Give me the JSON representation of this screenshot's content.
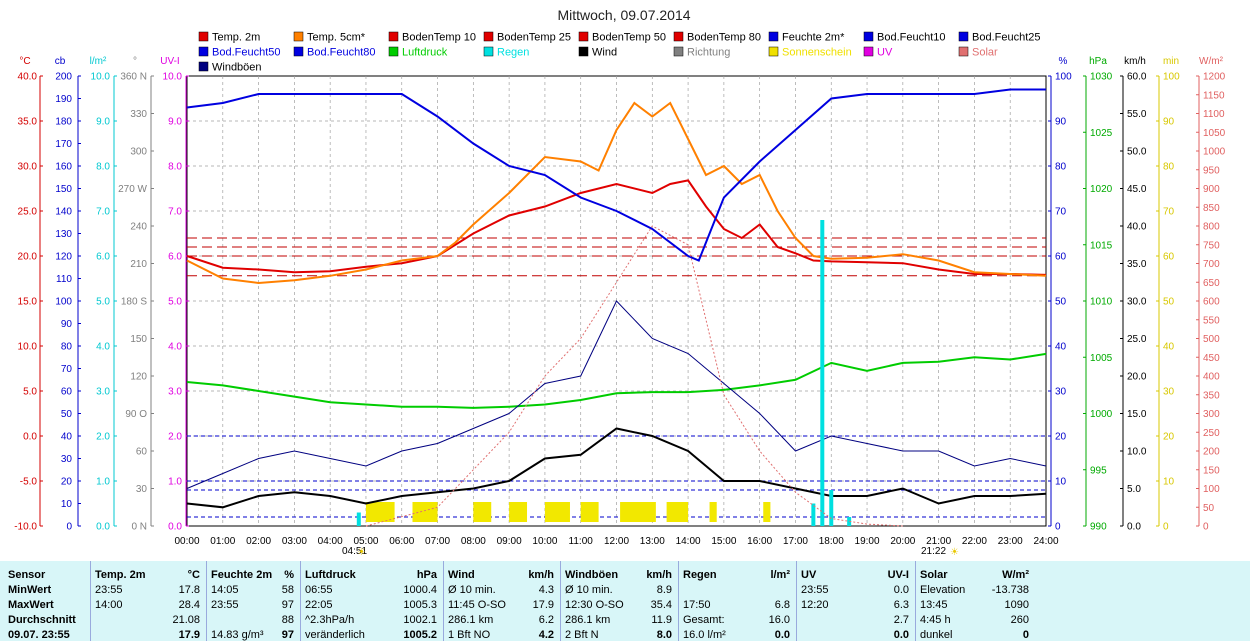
{
  "chart_data": {
    "type": "line",
    "title": "Mittwoch, 09.07.2014",
    "x_range": [
      "00:00",
      "24:00"
    ],
    "x_ticks": [
      "00:00",
      "01:00",
      "02:00",
      "03:00",
      "04:00",
      "05:00",
      "06:00",
      "07:00",
      "08:00",
      "09:00",
      "10:00",
      "11:00",
      "12:00",
      "13:00",
      "14:00",
      "15:00",
      "16:00",
      "17:00",
      "18:00",
      "19:00",
      "20:00",
      "21:00",
      "22:00",
      "23:00",
      "24:00"
    ],
    "sunrise": "04:51",
    "sunset": "21:22",
    "axes": [
      {
        "unit": "°C",
        "color": "#d40000",
        "ticks": [
          "40.0",
          "35.0",
          "30.0",
          "25.0",
          "20.0",
          "15.0",
          "10.0",
          "5.0",
          "0.0",
          "-5.0",
          "-10.0"
        ]
      },
      {
        "unit": "cb",
        "color": "#0000cc",
        "ticks": [
          "200",
          "190",
          "180",
          "170",
          "160",
          "150",
          "140",
          "130",
          "120",
          "110",
          "100",
          "90",
          "80",
          "70",
          "60",
          "50",
          "40",
          "30",
          "20",
          "10",
          "0"
        ]
      },
      {
        "unit": "l/m²",
        "color": "#00c8d0",
        "ticks": [
          "10.0",
          "9.0",
          "8.0",
          "7.0",
          "6.0",
          "5.0",
          "4.0",
          "3.0",
          "2.0",
          "1.0",
          "0.0"
        ]
      },
      {
        "unit": "°",
        "color": "#808080",
        "ticks": [
          "360 N",
          "330",
          "300",
          "270 W",
          "240",
          "210",
          "180 S",
          "150",
          "120",
          "90 O",
          "60",
          "30",
          "0 N"
        ]
      },
      {
        "unit": "UV-I",
        "color": "#e000e0",
        "ticks": [
          "10.0",
          "9.0",
          "8.0",
          "7.0",
          "6.0",
          "5.0",
          "4.0",
          "3.0",
          "2.0",
          "1.0",
          "0.0"
        ]
      },
      {
        "unit": "%",
        "color": "#0000cc",
        "ticks": [
          "100",
          "90",
          "80",
          "70",
          "60",
          "50",
          "40",
          "30",
          "20",
          "10",
          "0"
        ]
      },
      {
        "unit": "hPa",
        "color": "#00aa00",
        "ticks": [
          "1030",
          "1025",
          "1020",
          "1015",
          "1010",
          "1005",
          "1000",
          "995",
          "990"
        ]
      },
      {
        "unit": "km/h",
        "color": "#000000",
        "ticks": [
          "60.0",
          "55.0",
          "50.0",
          "45.0",
          "40.0",
          "35.0",
          "30.0",
          "25.0",
          "20.0",
          "15.0",
          "10.0",
          "5.0",
          "0.0"
        ]
      },
      {
        "unit": "min",
        "color": "#d8c800",
        "ticks": [
          "100",
          "90",
          "80",
          "70",
          "60",
          "50",
          "40",
          "30",
          "20",
          "10",
          "0"
        ]
      },
      {
        "unit": "W/m²",
        "color": "#e06060",
        "ticks": [
          "1200",
          "1150",
          "1100",
          "1050",
          "1000",
          "950",
          "900",
          "850",
          "800",
          "750",
          "700",
          "650",
          "600",
          "550",
          "500",
          "450",
          "400",
          "350",
          "300",
          "250",
          "200",
          "150",
          "100",
          "50",
          "0"
        ]
      }
    ],
    "legend": [
      {
        "name": "Temp. 2m",
        "color": "#e00000"
      },
      {
        "name": "Temp. 5cm*",
        "color": "#ff8000"
      },
      {
        "name": "BodenTemp 10",
        "color": "#e00000"
      },
      {
        "name": "BodenTemp 25",
        "color": "#e00000"
      },
      {
        "name": "BodenTemp 50",
        "color": "#e00000"
      },
      {
        "name": "BodenTemp 80",
        "color": "#e00000"
      },
      {
        "name": "Feuchte 2m*",
        "color": "#0000e0"
      },
      {
        "name": "Bod.Feucht10",
        "color": "#0000e0"
      },
      {
        "name": "Bod.Feucht25",
        "color": "#0000e0"
      },
      {
        "name": "Bod.Feucht50",
        "color": "#0000e0"
      },
      {
        "name": "Bod.Feucht80",
        "color": "#0000e0"
      },
      {
        "name": "Luftdruck",
        "color": "#00cc00"
      },
      {
        "name": "Regen",
        "color": "#00e0e0"
      },
      {
        "name": "Wind",
        "color": "#000000"
      },
      {
        "name": "Richtung",
        "color": "#808080"
      },
      {
        "name": "Sonnenschein",
        "color": "#f0e000"
      },
      {
        "name": "UV",
        "color": "#e000e0"
      },
      {
        "name": "Solar",
        "color": "#e07070"
      },
      {
        "name": "Windböen",
        "color": "#000080"
      }
    ],
    "series": [
      {
        "name": "Temp. 2m",
        "axis": "°C",
        "color": "#e00000",
        "x": [
          0,
          1,
          2,
          3,
          4,
          5,
          6,
          7,
          8,
          9,
          10,
          11,
          12,
          13,
          13.5,
          14,
          14.5,
          15,
          15.5,
          16,
          16.5,
          17,
          17.5,
          18,
          19,
          20,
          21,
          22,
          23,
          24
        ],
        "values": [
          20.0,
          18.7,
          18.5,
          18.2,
          18.3,
          18.8,
          19.2,
          20.0,
          22.5,
          24.5,
          25.5,
          27.0,
          28.0,
          27.0,
          28.0,
          28.4,
          25.5,
          23.0,
          22.0,
          23.5,
          21.0,
          20.3,
          19.5,
          19.4,
          19.3,
          19.2,
          18.5,
          18.0,
          18.0,
          17.9
        ]
      },
      {
        "name": "Temp. 5cm*",
        "axis": "°C",
        "color": "#ff8000",
        "x": [
          0,
          1,
          2,
          3,
          4,
          5,
          6,
          7,
          7.5,
          8,
          9,
          10,
          11,
          11.5,
          12,
          12.5,
          13,
          13.5,
          14,
          14.5,
          15,
          15.5,
          16,
          16.5,
          17,
          17.5,
          18,
          19,
          20,
          21,
          22,
          23,
          24
        ],
        "values": [
          19.5,
          17.5,
          17.0,
          17.3,
          17.8,
          18.5,
          19.5,
          20.0,
          21.5,
          23.5,
          27.0,
          31.0,
          30.5,
          29.5,
          34.0,
          37.0,
          35.5,
          37.0,
          33.0,
          29.0,
          30.0,
          28.0,
          29.0,
          25.0,
          22.0,
          20.0,
          19.7,
          19.8,
          20.2,
          19.5,
          18.2,
          18.0,
          17.8
        ]
      },
      {
        "name": "Feuchte 2m*",
        "axis": "%",
        "color": "#0000e0",
        "x": [
          0,
          1,
          2,
          3,
          4,
          5,
          6,
          7,
          8,
          9,
          10,
          11,
          12,
          13,
          14,
          14.3,
          15,
          16,
          17,
          18,
          19,
          20,
          21,
          22,
          23,
          24
        ],
        "values": [
          93,
          94,
          96,
          96,
          96,
          96,
          96,
          91,
          85,
          80,
          78,
          73,
          70,
          66,
          60,
          59,
          73,
          81,
          88,
          95,
          96,
          96,
          96,
          96,
          97,
          97
        ]
      },
      {
        "name": "Luftdruck",
        "axis": "hPa",
        "color": "#00cc00",
        "x": [
          0,
          1,
          2,
          3,
          4,
          5,
          6,
          7,
          8,
          9,
          10,
          11,
          12,
          13,
          14,
          15,
          16,
          17,
          18,
          19,
          20,
          21,
          22,
          23,
          24
        ],
        "values": [
          1002.8,
          1002.5,
          1002.0,
          1001.5,
          1001.0,
          1000.8,
          1000.6,
          1000.6,
          1000.5,
          1000.6,
          1000.8,
          1001.2,
          1001.8,
          1001.9,
          1001.9,
          1002.1,
          1002.5,
          1003.0,
          1004.5,
          1003.8,
          1004.5,
          1004.6,
          1005.0,
          1004.8,
          1005.3
        ]
      },
      {
        "name": "Wind",
        "axis": "km/h",
        "color": "#000000",
        "x": [
          0,
          1,
          2,
          3,
          4,
          5,
          6,
          7,
          8,
          9,
          10,
          11,
          12,
          13,
          14,
          15,
          16,
          17,
          18,
          19,
          20,
          21,
          22,
          23,
          24
        ],
        "values": [
          3,
          2.5,
          4,
          4.5,
          4,
          3,
          4,
          4.5,
          5,
          6,
          9,
          9.5,
          13,
          12,
          10,
          6,
          6,
          5,
          4,
          4,
          5,
          3,
          4,
          4,
          4.3
        ]
      },
      {
        "name": "Windböen",
        "axis": "km/h",
        "color": "#000080",
        "x": [
          0,
          1,
          2,
          3,
          4,
          5,
          6,
          7,
          8,
          9,
          10,
          11,
          12,
          13,
          14,
          15,
          16,
          17,
          18,
          19,
          20,
          21,
          22,
          23,
          24
        ],
        "values": [
          5,
          7,
          9,
          10,
          9,
          8,
          10,
          11,
          13,
          15,
          19,
          20,
          30,
          25,
          23,
          19,
          15,
          10,
          12,
          11,
          10,
          10,
          8,
          9,
          8
        ]
      },
      {
        "name": "Regen",
        "axis": "l/m²",
        "color": "#00e0e0",
        "x": [
          4.8,
          17.5,
          17.75,
          18.0,
          18.5
        ],
        "values": [
          0.3,
          0.5,
          6.8,
          0.8,
          0.2
        ]
      },
      {
        "name": "Solar",
        "axis": "W/m²",
        "color": "#e07070",
        "x": [
          5,
          7,
          8,
          9,
          10,
          11,
          12,
          13,
          14,
          15,
          16,
          17,
          18,
          19,
          20
        ],
        "values": [
          0,
          50,
          150,
          250,
          400,
          500,
          650,
          800,
          750,
          350,
          200,
          90,
          20,
          5,
          0
        ]
      }
    ],
    "sun_intervals": [
      [
        5.0,
        5.8
      ],
      [
        6.3,
        7.0
      ],
      [
        8.0,
        8.5
      ],
      [
        9.0,
        9.5
      ],
      [
        10.0,
        10.7
      ],
      [
        11.0,
        11.5
      ],
      [
        12.1,
        13.1
      ],
      [
        13.4,
        14.0
      ],
      [
        14.6,
        14.8
      ],
      [
        16.1,
        16.3
      ]
    ],
    "soil_temps": [
      {
        "name": "BodenTemp 10",
        "value": 20.0
      },
      {
        "name": "BodenTemp 25",
        "value": 21.0
      },
      {
        "name": "BodenTemp 50",
        "value": 22.0
      },
      {
        "name": "BodenTemp 80",
        "value": 17.8
      }
    ]
  },
  "table": {
    "row_labels": [
      "Sensor",
      "MinWert",
      "MaxWert",
      "Durchschnitt",
      "09.07. 23:55"
    ],
    "columns": [
      {
        "header": "Temp. 2m",
        "unit": "°C",
        "rows": [
          [
            "23:55",
            "17.8"
          ],
          [
            "14:00",
            "28.4"
          ],
          [
            "",
            "21.08"
          ],
          [
            "",
            "17.9"
          ]
        ]
      },
      {
        "header": "Feuchte 2m",
        "unit": "%",
        "rows": [
          [
            "14:05",
            "58"
          ],
          [
            "23:55",
            "97"
          ],
          [
            "",
            "88"
          ],
          [
            "14.83 g/m³",
            "97"
          ]
        ]
      },
      {
        "header": "Luftdruck",
        "unit": "hPa",
        "rows": [
          [
            "06:55",
            "1000.4"
          ],
          [
            "22:05",
            "1005.3"
          ],
          [
            "^2.3hPa/h",
            "1002.1"
          ],
          [
            "veränderlich",
            "1005.2"
          ]
        ]
      },
      {
        "header": "Wind",
        "unit": "km/h",
        "rows": [
          [
            "Ø 10 min.",
            "4.3"
          ],
          [
            "11:45   O-SO",
            "17.9"
          ],
          [
            "286.1 km",
            "6.2"
          ],
          [
            "1 Bft NO",
            "4.2"
          ]
        ]
      },
      {
        "header": "Windböen",
        "unit": "km/h",
        "rows": [
          [
            "Ø 10 min.",
            "8.9"
          ],
          [
            "12:30   O-SO",
            "35.4"
          ],
          [
            "286.1 km",
            "11.9"
          ],
          [
            "2 Bft N",
            "8.0"
          ]
        ]
      },
      {
        "header": "Regen",
        "unit": "l/m²",
        "rows": [
          [
            "",
            ""
          ],
          [
            "17:50",
            "6.8"
          ],
          [
            "Gesamt:",
            "16.0"
          ],
          [
            "16.0 l/m²",
            "0.0"
          ]
        ]
      },
      {
        "header": "UV",
        "unit": "UV-I",
        "rows": [
          [
            "23:55",
            "0.0"
          ],
          [
            "12:20",
            "6.3"
          ],
          [
            "",
            "2.7"
          ],
          [
            "",
            "0.0"
          ]
        ]
      },
      {
        "header": "Solar",
        "unit": "W/m²",
        "rows": [
          [
            "Elevation",
            "-13.738"
          ],
          [
            "13:45",
            "1090"
          ],
          [
            "4:45 h",
            "260"
          ],
          [
            "dunkel",
            "0"
          ]
        ]
      }
    ]
  }
}
